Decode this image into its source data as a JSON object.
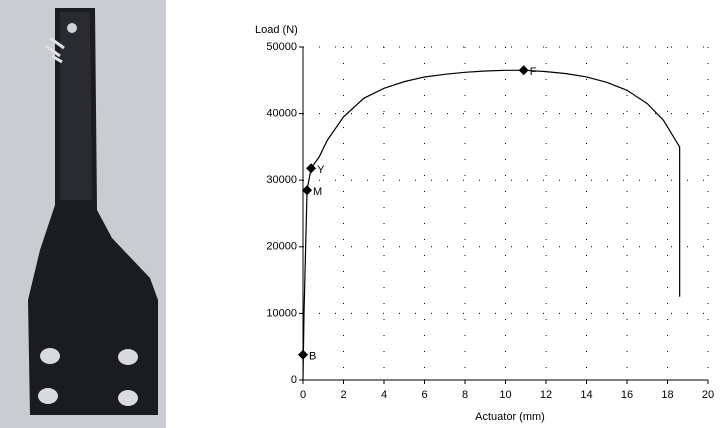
{
  "chart_data": {
    "type": "line",
    "y_label": "Load (N)",
    "x_label": "Actuator (mm)",
    "xlim": [
      0,
      20
    ],
    "ylim": [
      0,
      50000
    ],
    "xticks": [
      0,
      2,
      4,
      6,
      8,
      10,
      12,
      14,
      16,
      18,
      20
    ],
    "yticks": [
      0,
      10000,
      20000,
      30000,
      40000,
      50000
    ],
    "grid": true,
    "series": [
      {
        "color": "#000000",
        "x": [
          0,
          0.05,
          0.2,
          0.4,
          0.8,
          1.2,
          2,
          3,
          4,
          5,
          6,
          7,
          8,
          9,
          10,
          11,
          12,
          13,
          14,
          15,
          16,
          17,
          17.8,
          18.3,
          18.6,
          18.6
        ],
        "values": [
          0,
          10000,
          28500,
          31800,
          33500,
          36000,
          39500,
          42300,
          43800,
          44800,
          45500,
          45900,
          46200,
          46400,
          46500,
          46500,
          46300,
          46000,
          45500,
          44700,
          43500,
          41500,
          39000,
          36500,
          35000,
          12500
        ]
      }
    ],
    "points": {
      "labels": [
        "B",
        "M",
        "Y",
        "F"
      ],
      "x": [
        0,
        0.2,
        0.4,
        10.9
      ],
      "values": [
        3800,
        28500,
        31800,
        46500
      ]
    }
  }
}
